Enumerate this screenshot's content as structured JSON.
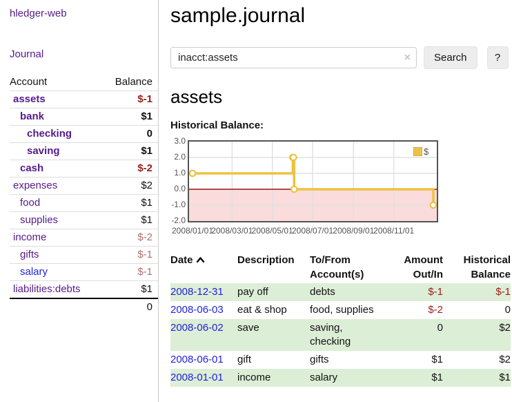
{
  "colors": {
    "link_purple": "#551a8b",
    "link_blue": "#2222dd",
    "negative_strong": "#9b1d1d",
    "negative_soft": "#b07070",
    "row_shade_green": "#ddeed6",
    "chart_line": "#edc240"
  },
  "sidebar": {
    "app_title": "hledger-web",
    "nav": {
      "journal": "Journal"
    },
    "accounts_table": {
      "header": {
        "account": "Account",
        "balance": "Balance"
      },
      "rows": [
        {
          "name": "assets",
          "balance": "$-1",
          "depth": 1,
          "bold": true,
          "balance_style": "neg-strong",
          "link": "purple"
        },
        {
          "name": "bank",
          "balance": "$1",
          "depth": 2,
          "bold": true,
          "balance_style": "pos",
          "link": "purple"
        },
        {
          "name": "checking",
          "balance": "0",
          "depth": 3,
          "bold": true,
          "balance_style": "pos",
          "link": "purple"
        },
        {
          "name": "saving",
          "balance": "$1",
          "depth": 3,
          "bold": true,
          "balance_style": "pos",
          "link": "purple"
        },
        {
          "name": "cash",
          "balance": "$-2",
          "depth": 2,
          "bold": true,
          "balance_style": "neg-strong",
          "link": "purple"
        },
        {
          "name": "expenses",
          "balance": "$2",
          "depth": 1,
          "bold": false,
          "balance_style": "pos",
          "link": "purple"
        },
        {
          "name": "food",
          "balance": "$1",
          "depth": 2,
          "bold": false,
          "balance_style": "pos",
          "link": "purple"
        },
        {
          "name": "supplies",
          "balance": "$1",
          "depth": 2,
          "bold": false,
          "balance_style": "pos",
          "link": "purple"
        },
        {
          "name": "income",
          "balance": "$-2",
          "depth": 1,
          "bold": false,
          "balance_style": "neg-soft",
          "link": "purple"
        },
        {
          "name": "gifts",
          "balance": "$-1",
          "depth": 2,
          "bold": false,
          "balance_style": "neg-soft",
          "link": "purple"
        },
        {
          "name": "salary",
          "balance": "$-1",
          "depth": 2,
          "bold": false,
          "balance_style": "neg-soft",
          "link": "blue"
        },
        {
          "name": "liabilities:debts",
          "balance": "$1",
          "depth": 1,
          "bold": false,
          "balance_style": "pos",
          "link": "purple"
        }
      ],
      "total": "0"
    }
  },
  "main": {
    "page_title": "sample.journal",
    "search": {
      "value": "inacct:assets",
      "clear_label": "×",
      "search_button": "Search",
      "help_button": "?"
    },
    "account_heading": "assets",
    "section_label": "Historical Balance:"
  },
  "chart_data": {
    "type": "line",
    "step": true,
    "title": "Historical Balance:",
    "x": [
      "2008-01-01",
      "2008-06-01",
      "2008-06-02",
      "2008-06-03",
      "2008-12-31"
    ],
    "series": [
      {
        "name": "$",
        "color": "#edc240",
        "values": [
          1,
          2,
          2,
          0,
          -1
        ]
      }
    ],
    "xlim": [
      "2008-01-01",
      "2008-12-31"
    ],
    "ylim": [
      -2,
      3
    ],
    "y_ticks": [
      "3.0",
      "2.0",
      "1.0",
      "0.0",
      "-1.0",
      "-2.0"
    ],
    "x_ticks": [
      {
        "label": "2008/01/01",
        "date": "2008-01-01"
      },
      {
        "label": "2008/03/01",
        "date": "2008-03-01"
      },
      {
        "label": "2008/05/01",
        "date": "2008-05-01"
      },
      {
        "label": "2008/07/01",
        "date": "2008-07-01"
      },
      {
        "label": "2008/09/01",
        "date": "2008-09-01"
      },
      {
        "label": "2008/11/01",
        "date": "2008-11-01"
      }
    ],
    "legend": [
      {
        "label": "$",
        "color": "#e9c34d",
        "position": "top-right"
      }
    ],
    "styles": {
      "negative_fill": "#fadcdc",
      "zero_line": "#991111",
      "grid": "#e0e0e0",
      "border": "#545454",
      "marker_fill": "#ffffff"
    }
  },
  "register": {
    "headers": [
      {
        "label": "Date",
        "align": "left",
        "sort": "asc"
      },
      {
        "label": "Description",
        "align": "left"
      },
      {
        "label": "To/From Account(s)",
        "align": "left"
      },
      {
        "label": "Amount Out/In",
        "align": "right"
      },
      {
        "label": "Historical Balance",
        "align": "right"
      }
    ],
    "rows": [
      {
        "date": "2008-12-31",
        "description": "pay off",
        "accounts": "debts",
        "amount": "$-1",
        "balance": "$-1",
        "amount_negative": true,
        "balance_negative": true,
        "shaded": true
      },
      {
        "date": "2008-06-03",
        "description": "eat & shop",
        "accounts": "food, supplies",
        "amount": "$-2",
        "balance": "0",
        "amount_negative": true,
        "balance_negative": false,
        "shaded": false
      },
      {
        "date": "2008-06-02",
        "description": "save",
        "accounts": "saving, checking",
        "amount": "0",
        "balance": "$2",
        "amount_negative": false,
        "balance_negative": false,
        "shaded": true
      },
      {
        "date": "2008-06-01",
        "description": "gift",
        "accounts": "gifts",
        "amount": "$1",
        "balance": "$2",
        "amount_negative": false,
        "balance_negative": false,
        "shaded": false
      },
      {
        "date": "2008-01-01",
        "description": "income",
        "accounts": "salary",
        "amount": "$1",
        "balance": "$1",
        "amount_negative": false,
        "balance_negative": false,
        "shaded": true
      }
    ]
  }
}
